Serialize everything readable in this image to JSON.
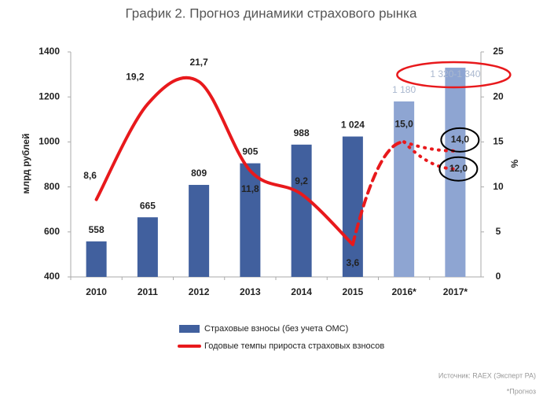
{
  "chart_data": {
    "type": "bar_line",
    "title": "График 2. Прогноз динамики страхового рынка",
    "categories": [
      "2010",
      "2011",
      "2012",
      "2013",
      "2014",
      "2015",
      "2016*",
      "2017*"
    ],
    "ylabel": "млрд рублей",
    "y2label": "%",
    "ylim": [
      400,
      1400
    ],
    "yticks": [
      400,
      600,
      800,
      1000,
      1200,
      1400
    ],
    "y2lim": [
      0,
      25
    ],
    "y2ticks": [
      0,
      5,
      10,
      15,
      20,
      25
    ],
    "forecast_from": 6,
    "series": [
      {
        "name": "Страховые взносы (без учета ОМС)",
        "kind": "bar",
        "color": "#41609e",
        "forecast_color": "#8ea5d2",
        "values": [
          558,
          665,
          809,
          905,
          988,
          1024,
          1180,
          1330
        ],
        "value_labels": [
          "558",
          "665",
          "809",
          "905",
          "988",
          "1 024",
          "1 180",
          "1 320-1 340"
        ]
      },
      {
        "name": "Годовые темпы прироста страховых взносов",
        "kind": "line",
        "axis": "y2",
        "color": "#e8191c",
        "values": [
          8.6,
          19.2,
          21.7,
          11.8,
          9.2,
          3.6,
          15.0,
          14.0
        ],
        "value_labels": [
          "8,6",
          "19,2",
          "21,7",
          "11,8",
          "9,2",
          "3,6",
          "15,0",
          "14,0"
        ],
        "alt_values": [
          null,
          null,
          null,
          null,
          null,
          null,
          null,
          12.0
        ],
        "alt_value_labels": [
          null,
          null,
          null,
          null,
          null,
          null,
          null,
          "12,0"
        ]
      }
    ],
    "source": "Источник: RAEX (Эксперт РА)",
    "note": "*Прогноз"
  }
}
